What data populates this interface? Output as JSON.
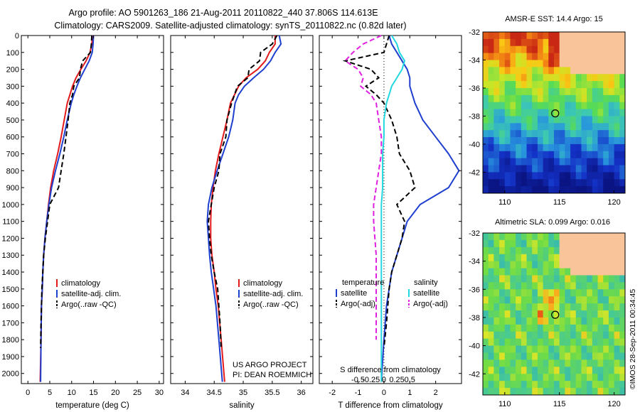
{
  "title_line1": "Argo profile: AO 5901263_186 21-Aug-2011 20110822_440 37.806S 114.613E",
  "title_line2": "Climatology: CARS2009. Satellite-adjusted climatology: synTS_20110822.nc (0.82d later)",
  "footer_project": "US ARGO PROJECT",
  "footer_pi": "PI: DEAN ROEMMICH",
  "credit": "©IMOS 28-Sep-2011 00:34:45",
  "colors": {
    "climatology": "#e31a1c",
    "satellite": "#1f3fcf",
    "argo": "#000000",
    "sal_sat": "#22d8e0",
    "sal_argo": "#e020e0"
  },
  "chart_data": [
    {
      "type": "line",
      "xlabel": "temperature (deg C)",
      "ylim": [
        2060,
        0
      ],
      "xlim": [
        -1.5,
        31
      ],
      "yticks": [
        0,
        100,
        200,
        300,
        400,
        500,
        600,
        700,
        800,
        900,
        1000,
        1100,
        1200,
        1300,
        1400,
        1500,
        1600,
        1700,
        1800,
        1900,
        2000
      ],
      "xticks": [
        0,
        5,
        10,
        15,
        20,
        25,
        30
      ],
      "legend": [
        "climatology",
        "satellite-adj. clim.",
        "Argo(..raw -QC)"
      ],
      "series": [
        {
          "name": "climatology",
          "color": "#e31a1c",
          "x": [
            14.8,
            14.6,
            14.2,
            13.3,
            12.1,
            11.0,
            10.2,
            9.6,
            9.0,
            8.3,
            7.6,
            6.8,
            5.9,
            5.2,
            4.7,
            4.3,
            3.9,
            3.6,
            3.4,
            3.3,
            3.1,
            3.0,
            2.8
          ],
          "y": [
            0,
            50,
            100,
            150,
            200,
            250,
            300,
            350,
            400,
            500,
            600,
            700,
            800,
            900,
            1000,
            1100,
            1200,
            1300,
            1400,
            1500,
            1600,
            1800,
            2050
          ]
        },
        {
          "name": "satellite-adj. clim.",
          "color": "#1f3fcf",
          "x": [
            15.0,
            14.9,
            14.7,
            14.0,
            13.0,
            12.0,
            11.2,
            10.5,
            9.9,
            9.0,
            8.2,
            7.3,
            6.3,
            5.4,
            4.8,
            4.3,
            3.9,
            3.6,
            3.4,
            3.3,
            3.1,
            3.0,
            2.9
          ],
          "y": [
            0,
            50,
            100,
            150,
            200,
            250,
            300,
            350,
            400,
            500,
            600,
            700,
            800,
            900,
            1000,
            1100,
            1200,
            1300,
            1400,
            1500,
            1600,
            1800,
            2050
          ]
        },
        {
          "name": "Argo(..raw -QC)",
          "color": "#000000",
          "dash": true,
          "x": [
            14.6,
            14.5,
            14.3,
            12.5,
            12.0,
            11.8,
            10.5,
            10.2,
            9.6,
            9.2,
            8.7,
            8.2,
            7.6,
            7.0,
            5.0,
            4.5,
            4.0,
            3.6,
            3.4,
            3.2,
            3.0,
            2.9
          ],
          "y": [
            0,
            50,
            100,
            150,
            200,
            250,
            300,
            350,
            400,
            500,
            600,
            700,
            800,
            900,
            1000,
            1100,
            1200,
            1300,
            1400,
            1500,
            1700,
            1850
          ]
        }
      ]
    },
    {
      "type": "line",
      "xlabel": "salinity",
      "ylim": [
        2060,
        0
      ],
      "xlim": [
        33.75,
        36.2
      ],
      "xticks": [
        34,
        34.5,
        35,
        35.5,
        36
      ],
      "legend": [
        "climatology",
        "satellite-adj. clim.",
        "Argo(..raw -QC)"
      ],
      "series": [
        {
          "name": "climatology",
          "color": "#e31a1c",
          "x": [
            35.55,
            35.55,
            35.45,
            35.38,
            35.25,
            35.05,
            34.92,
            34.85,
            34.78,
            34.72,
            34.65,
            34.58,
            34.52,
            34.48,
            34.45,
            34.44,
            34.44,
            34.46,
            34.5,
            34.53,
            34.57,
            34.62,
            34.68
          ],
          "y": [
            0,
            50,
            100,
            150,
            200,
            250,
            300,
            350,
            400,
            500,
            600,
            700,
            800,
            900,
            1000,
            1100,
            1200,
            1300,
            1400,
            1500,
            1600,
            1800,
            2050
          ]
        },
        {
          "name": "satellite-adj. clim.",
          "color": "#1f3fcf",
          "x": [
            35.62,
            35.65,
            35.55,
            35.47,
            35.35,
            35.18,
            35.02,
            34.92,
            34.86,
            34.82,
            34.75,
            34.65,
            34.55,
            34.46,
            34.4,
            34.38,
            34.4,
            34.42,
            34.45,
            34.49,
            34.53,
            34.58,
            34.64
          ],
          "y": [
            0,
            50,
            100,
            150,
            200,
            250,
            300,
            350,
            400,
            500,
            600,
            700,
            800,
            900,
            1000,
            1100,
            1200,
            1300,
            1400,
            1500,
            1600,
            1800,
            2050
          ]
        },
        {
          "name": "Argo(..raw -QC)",
          "color": "#000000",
          "dash": true,
          "x": [
            35.58,
            35.5,
            35.3,
            35.28,
            35.1,
            35.08,
            34.9,
            34.85,
            34.8,
            34.72,
            34.7,
            34.6,
            34.58,
            34.5,
            34.45,
            34.4,
            34.42,
            34.45,
            34.5,
            34.56,
            34.6,
            34.62
          ],
          "y": [
            0,
            50,
            100,
            150,
            200,
            250,
            300,
            350,
            400,
            500,
            600,
            700,
            800,
            900,
            1000,
            1100,
            1200,
            1300,
            1400,
            1500,
            1700,
            1850
          ]
        }
      ]
    },
    {
      "type": "line",
      "xlabel": "T difference from climatology",
      "xlabel_top": "S difference from climatology",
      "ylim": [
        2060,
        0
      ],
      "xlim": [
        -2.5,
        3
      ],
      "xticks": [
        -2,
        -1,
        0,
        1,
        2
      ],
      "xticks_top": [
        "-0.5",
        "-0.25",
        "0",
        "0.25",
        "0.5"
      ],
      "legend_title_t": "temperature",
      "legend_title_s": "salinity",
      "legend": [
        "satellite",
        "Argo(-adj)",
        "satellite",
        "Argo(-adj)"
      ],
      "series": [
        {
          "name": "temperature satellite",
          "color": "#1f3fcf",
          "x": [
            0.2,
            0.3,
            0.5,
            0.7,
            0.9,
            1.0,
            1.0,
            1.1,
            1.2,
            1.5,
            2.0,
            2.5,
            2.9,
            2.5,
            1.4,
            0.9,
            0.7,
            0.5,
            0.3,
            0.2,
            0.1,
            0.0,
            -0.1
          ],
          "y": [
            0,
            50,
            100,
            150,
            200,
            250,
            300,
            350,
            400,
            500,
            600,
            700,
            800,
            900,
            1000,
            1100,
            1200,
            1300,
            1400,
            1500,
            1600,
            1800,
            2050
          ]
        },
        {
          "name": "temperature Argo(-adj)",
          "color": "#000000",
          "dash": true,
          "x": [
            0.2,
            0.1,
            0.0,
            -1.5,
            -0.5,
            -0.2,
            -0.7,
            -0.3,
            0.0,
            0.3,
            0.5,
            0.6,
            1.0,
            1.2,
            0.5,
            0.8,
            0.7,
            0.5,
            0.3,
            0.2,
            0.1,
            0.0
          ],
          "y": [
            0,
            50,
            100,
            150,
            200,
            250,
            300,
            350,
            400,
            500,
            600,
            700,
            800,
            900,
            1000,
            1100,
            1200,
            1300,
            1400,
            1500,
            1700,
            1850
          ]
        },
        {
          "name": "salinity satellite",
          "color": "#22d8e0",
          "x": [
            0.3,
            0.5,
            0.6,
            0.8,
            0.7,
            0.5,
            0.3,
            0.2,
            0.1,
            0.0,
            0.0,
            -0.05,
            -0.05,
            -0.05,
            -0.1,
            -0.1,
            -0.1,
            -0.1,
            -0.1,
            -0.1,
            -0.1,
            -0.1,
            -0.1
          ],
          "y": [
            0,
            50,
            100,
            150,
            200,
            250,
            300,
            350,
            400,
            500,
            600,
            700,
            800,
            900,
            1000,
            1100,
            1200,
            1300,
            1400,
            1500,
            1600,
            1800,
            2050
          ]
        },
        {
          "name": "salinity Argo(-adj)",
          "color": "#e020e0",
          "dash": true,
          "x": [
            -0.1,
            -0.8,
            -1.2,
            -1.5,
            -1.0,
            -0.8,
            -0.9,
            -0.5,
            -0.3,
            -0.2,
            -0.1,
            -0.1,
            -0.2,
            -0.3,
            -0.4,
            -0.4,
            -0.35,
            -0.3,
            -0.3,
            -0.3,
            -0.3,
            -0.3
          ],
          "y": [
            0,
            50,
            100,
            150,
            200,
            250,
            300,
            350,
            400,
            500,
            600,
            700,
            800,
            900,
            1000,
            1100,
            1200,
            1300,
            1400,
            1500,
            1700,
            1800
          ]
        }
      ]
    },
    {
      "type": "heatmap",
      "title": "AMSR-E SST: 14.4 Argo: 15",
      "xlim": [
        108,
        121
      ],
      "ylim": [
        -43.5,
        -32
      ],
      "xticks": [
        110,
        115,
        120
      ],
      "yticks": [
        -32,
        -34,
        -36,
        -38,
        -40,
        -42
      ],
      "argo_position": [
        114.613,
        -37.806
      ]
    },
    {
      "type": "heatmap",
      "title": "Altimetric SLA: 0.099 Argo: 0.016",
      "xlim": [
        108,
        121
      ],
      "ylim": [
        -43.5,
        -32
      ],
      "xticks": [
        110,
        115,
        120
      ],
      "yticks": [
        -32,
        -34,
        -36,
        -38,
        -40,
        -42
      ],
      "argo_position": [
        114.613,
        -37.806
      ]
    }
  ]
}
